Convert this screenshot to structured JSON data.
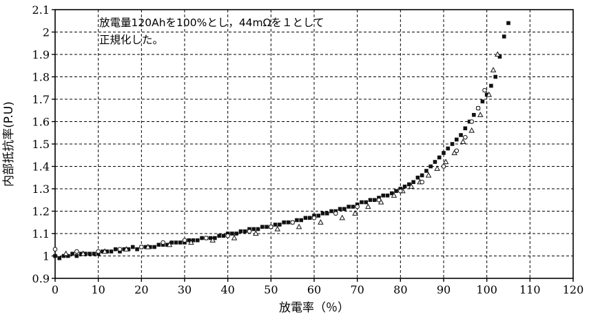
{
  "chart_data": {
    "type": "scatter",
    "title": "",
    "xlabel": "放電率（％）",
    "ylabel": "内部抵抗率(P.U)",
    "xlim": [
      0,
      120
    ],
    "ylim": [
      0.9,
      2.1
    ],
    "x_ticks": [
      "0",
      "10",
      "20",
      "30",
      "40",
      "50",
      "60",
      "70",
      "80",
      "90",
      "100",
      "110",
      "120"
    ],
    "y_ticks": [
      "0.9",
      "1",
      "1.1",
      "1.2",
      "1.3",
      "1.4",
      "1.5",
      "1.6",
      "1.7",
      "1.8",
      "1.9",
      "2",
      "2.1"
    ],
    "grid": true,
    "annotation": [
      "放電量120Ahを100%とし，44mΩを１として",
      "正規化した。"
    ],
    "series": [
      {
        "marker": "square",
        "x": [
          0,
          1,
          2,
          3,
          4,
          5,
          6,
          7,
          8,
          9,
          10,
          11,
          12,
          13,
          14,
          15,
          16,
          17,
          18,
          19,
          20,
          21,
          22,
          23,
          24,
          25,
          26,
          27,
          28,
          29,
          30,
          31,
          32,
          33,
          34,
          35,
          36,
          37,
          38,
          39,
          40,
          41,
          42,
          43,
          44,
          45,
          46,
          47,
          48,
          49,
          50,
          51,
          52,
          53,
          54,
          55,
          56,
          57,
          58,
          59,
          60,
          61,
          62,
          63,
          64,
          65,
          66,
          67,
          68,
          69,
          70,
          71,
          72,
          73,
          74,
          75,
          76,
          77,
          78,
          79,
          80,
          81,
          82,
          83,
          84,
          85,
          86,
          87,
          88,
          89,
          90,
          91,
          92,
          93,
          94,
          95,
          96,
          97,
          98,
          99,
          100,
          101,
          102,
          103,
          104,
          105
        ],
        "y": [
          1.0,
          0.99,
          1.0,
          1.0,
          1.01,
          1.0,
          1.01,
          1.01,
          1.01,
          1.01,
          1.01,
          1.02,
          1.02,
          1.02,
          1.03,
          1.02,
          1.03,
          1.03,
          1.04,
          1.03,
          1.04,
          1.04,
          1.04,
          1.04,
          1.05,
          1.05,
          1.05,
          1.06,
          1.06,
          1.06,
          1.06,
          1.07,
          1.07,
          1.07,
          1.08,
          1.08,
          1.08,
          1.08,
          1.09,
          1.09,
          1.1,
          1.1,
          1.1,
          1.11,
          1.11,
          1.12,
          1.12,
          1.12,
          1.13,
          1.13,
          1.13,
          1.14,
          1.14,
          1.15,
          1.15,
          1.15,
          1.16,
          1.16,
          1.17,
          1.17,
          1.18,
          1.18,
          1.19,
          1.19,
          1.2,
          1.2,
          1.21,
          1.21,
          1.22,
          1.22,
          1.23,
          1.24,
          1.24,
          1.25,
          1.25,
          1.26,
          1.27,
          1.27,
          1.28,
          1.29,
          1.3,
          1.31,
          1.32,
          1.33,
          1.35,
          1.36,
          1.38,
          1.4,
          1.42,
          1.44,
          1.46,
          1.48,
          1.5,
          1.52,
          1.54,
          1.57,
          1.6,
          1.63,
          1.66,
          1.69,
          1.72,
          1.76,
          1.8,
          1.89,
          1.98,
          2.04
        ]
      },
      {
        "marker": "triangle",
        "x": [
          2.5,
          6.5,
          11.5,
          16.5,
          21.5,
          26.5,
          31.5,
          36.5,
          41.5,
          46.5,
          51.5,
          56.5,
          61.5,
          66.5,
          69.5,
          72.5,
          75.5,
          78.5,
          80.5,
          82.5,
          84.5,
          86.5,
          88.5,
          90.5,
          92.5,
          94.5,
          96.5,
          98.5,
          100.5,
          101.5,
          102.5
        ],
        "y": [
          1.01,
          1.01,
          1.02,
          1.03,
          1.04,
          1.05,
          1.06,
          1.07,
          1.08,
          1.1,
          1.12,
          1.13,
          1.15,
          1.17,
          1.19,
          1.22,
          1.24,
          1.27,
          1.29,
          1.31,
          1.33,
          1.36,
          1.39,
          1.42,
          1.46,
          1.51,
          1.56,
          1.63,
          1.72,
          1.83,
          1.9
        ]
      },
      {
        "marker": "circle",
        "x": [
          0,
          5,
          10,
          15,
          20,
          25,
          30,
          35,
          40,
          45,
          50,
          55,
          60,
          65,
          70,
          75,
          80,
          85,
          90,
          93,
          95,
          96.5,
          98,
          99.5
        ],
        "y": [
          1.03,
          1.02,
          1.02,
          1.03,
          1.04,
          1.06,
          1.07,
          1.08,
          1.09,
          1.11,
          1.13,
          1.15,
          1.17,
          1.19,
          1.22,
          1.25,
          1.29,
          1.33,
          1.4,
          1.47,
          1.53,
          1.6,
          1.66,
          1.74
        ]
      }
    ]
  }
}
